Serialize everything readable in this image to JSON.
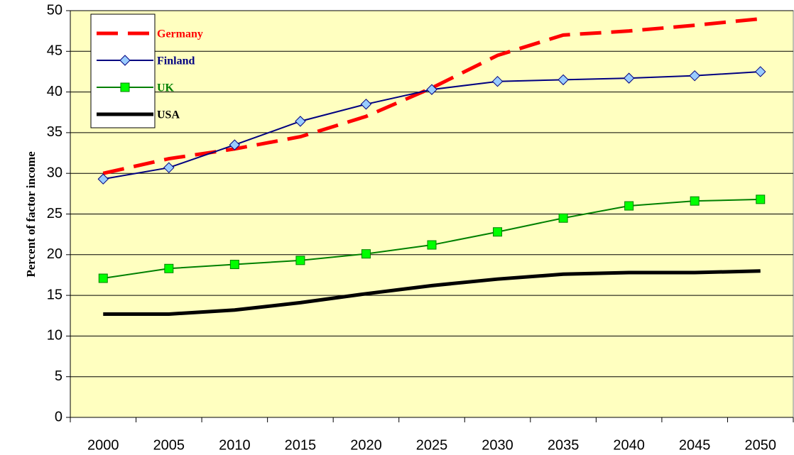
{
  "chart_data": {
    "type": "line",
    "y_label": "Percent of factor income",
    "categories": [
      "2000",
      "2005",
      "2010",
      "2015",
      "2020",
      "2025",
      "2030",
      "2035",
      "2040",
      "2045",
      "2050"
    ],
    "series": [
      {
        "name": "Germany",
        "color": "#ff0000",
        "style": "dashed",
        "marker": "none",
        "width": 5,
        "values": [
          30,
          31.8,
          33,
          34.5,
          37,
          40.5,
          44.5,
          47,
          47.5,
          48.2,
          49
        ]
      },
      {
        "name": "Finland",
        "color": "#000080",
        "style": "solid",
        "marker": "diamond",
        "marker_color": "#99ccff",
        "width": 2,
        "values": [
          29.3,
          30.7,
          33.5,
          36.4,
          38.5,
          40.3,
          41.3,
          41.5,
          41.7,
          42,
          42.5
        ]
      },
      {
        "name": "UK",
        "color": "#008000",
        "style": "solid",
        "marker": "square",
        "marker_color": "#00ff00",
        "width": 2,
        "values": [
          17.1,
          18.3,
          18.8,
          19.3,
          20.1,
          21.2,
          22.8,
          24.5,
          26,
          26.6,
          26.8
        ]
      },
      {
        "name": "USA",
        "color": "#000000",
        "style": "solid",
        "marker": "none",
        "width": 5,
        "values": [
          12.7,
          12.7,
          13.2,
          14.1,
          15.2,
          16.2,
          17,
          17.6,
          17.8,
          17.8,
          18
        ]
      }
    ],
    "ylim": [
      0,
      50
    ],
    "yticks": [
      0,
      5,
      10,
      15,
      20,
      25,
      30,
      35,
      40,
      45,
      50
    ],
    "grid": true,
    "legend": "upper left",
    "background": "#ffffc0"
  }
}
